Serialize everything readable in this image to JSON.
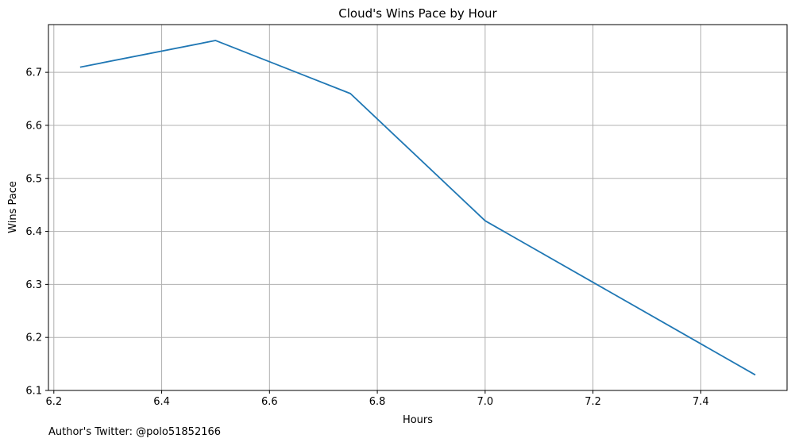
{
  "chart_data": {
    "type": "line",
    "title": "Cloud's Wins Pace by Hour",
    "xlabel": "Hours",
    "ylabel": "Wins Pace",
    "xlim": [
      6.19,
      7.56
    ],
    "ylim": [
      6.1,
      6.79
    ],
    "xticks": [
      "6.2",
      "6.4",
      "6.6",
      "6.8",
      "7.0",
      "7.2",
      "7.4"
    ],
    "yticks": [
      "6.1",
      "6.2",
      "6.3",
      "6.4",
      "6.5",
      "6.6",
      "6.7"
    ],
    "grid": true,
    "series": [
      {
        "x": [
          6.25,
          6.5,
          6.75,
          7.0,
          7.5
        ],
        "values": [
          6.71,
          6.76,
          6.66,
          6.42,
          6.13
        ],
        "color": "#1f77b4"
      }
    ]
  },
  "footnote": "Author's Twitter: @polo51852166"
}
